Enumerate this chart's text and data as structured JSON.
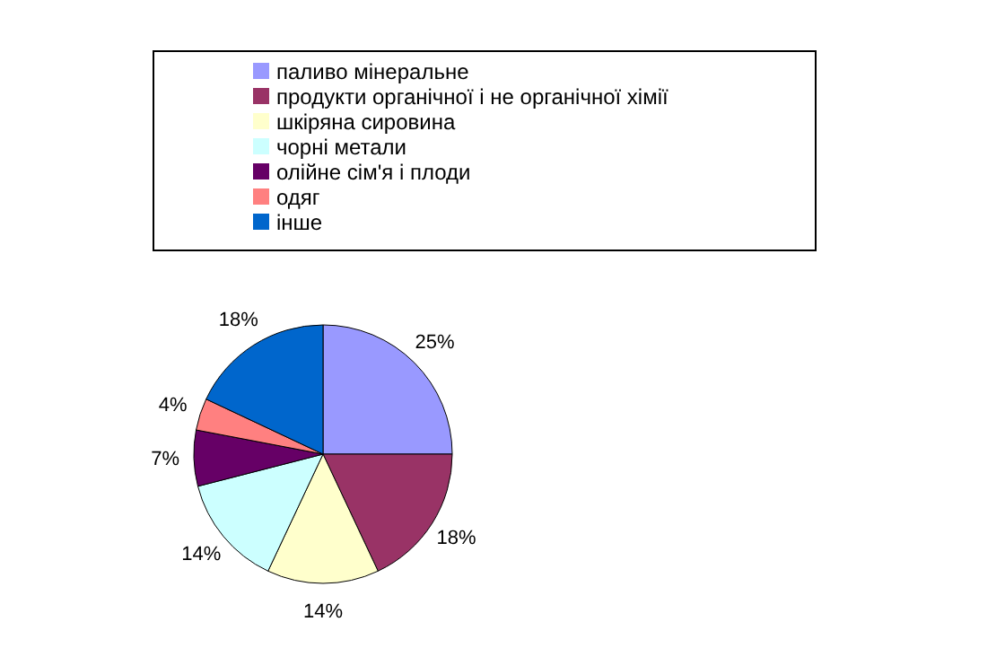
{
  "chart_data": {
    "type": "pie",
    "categories": [
      "паливо мінеральне",
      "продукти органічної і не органічної хімії",
      "шкіряна сировина",
      "чорні метали",
      "олійне сім'я і плоди",
      "одяг",
      "інше"
    ],
    "values": [
      25,
      18,
      14,
      14,
      7,
      4,
      18
    ],
    "colors": [
      "#9999ff",
      "#993366",
      "#ffffcc",
      "#ccffff",
      "#660066",
      "#ff8080",
      "#0066cc"
    ],
    "value_labels": [
      "25%",
      "18%",
      "14%",
      "14%",
      "7%",
      "4%",
      "18%"
    ],
    "legend": "top"
  }
}
